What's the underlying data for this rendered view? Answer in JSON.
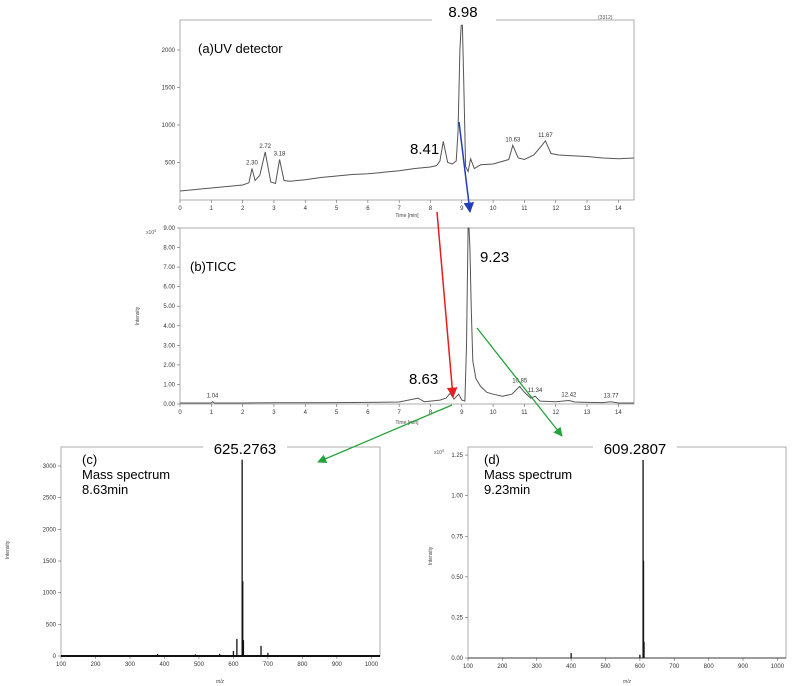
{
  "chart_data": [
    {
      "id": "uv",
      "type": "line",
      "panel_label": "(a)UV detector",
      "corner_label": "(3312)",
      "xlabel": "Time [min]",
      "ylabel": "",
      "xlim": [
        0,
        14.5
      ],
      "ylim": [
        0,
        2400
      ],
      "xticks": [
        0,
        1,
        2,
        3,
        4,
        5,
        6,
        7,
        8,
        9,
        10,
        11,
        12,
        13,
        14
      ],
      "yticks": [
        500,
        1000,
        1500,
        2000
      ],
      "series": [
        {
          "x": [
            0,
            0.5,
            1,
            1.5,
            2,
            2.2,
            2.3,
            2.4,
            2.55,
            2.72,
            2.9,
            3.05,
            3.18,
            3.32,
            3.5,
            4,
            4.5,
            5,
            5.5,
            6,
            6.5,
            7,
            7.5,
            8,
            8.2,
            8.3,
            8.41,
            8.55,
            8.7,
            8.82,
            8.88,
            8.94,
            8.98,
            9.02,
            9.06,
            9.12,
            9.2,
            9.28,
            9.4,
            9.6,
            10,
            10.5,
            10.63,
            10.8,
            11,
            11.3,
            11.5,
            11.67,
            11.85,
            12.1,
            12.5,
            13,
            13.5,
            14,
            14.5
          ],
          "y": [
            120,
            140,
            160,
            180,
            200,
            230,
            420,
            260,
            330,
            640,
            240,
            220,
            540,
            260,
            250,
            270,
            300,
            320,
            340,
            350,
            370,
            390,
            420,
            440,
            460,
            520,
            780,
            500,
            480,
            520,
            900,
            2000,
            2330,
            2330,
            1600,
            450,
            380,
            550,
            420,
            470,
            480,
            540,
            730,
            560,
            540,
            600,
            700,
            790,
            620,
            600,
            590,
            580,
            560,
            550,
            560
          ]
        }
      ],
      "annotations": [
        {
          "x": 2.3,
          "y": 420,
          "text": "2.30"
        },
        {
          "x": 2.72,
          "y": 640,
          "text": "2.72"
        },
        {
          "x": 3.18,
          "y": 540,
          "text": "3.18"
        },
        {
          "x": 10.63,
          "y": 730,
          "text": "10.63"
        },
        {
          "x": 11.67,
          "y": 790,
          "text": "11.67"
        }
      ],
      "callouts": {
        "top": "8.98",
        "left": "8.41"
      }
    },
    {
      "id": "ticc",
      "type": "line",
      "panel_label": "(b)TICC",
      "xlabel": "Time [min]",
      "ylabel": "Intensity",
      "multiplier": "x10",
      "exponent": "5",
      "xlim": [
        0,
        14.5
      ],
      "ylim": [
        0,
        9
      ],
      "xticks": [
        0,
        1,
        2,
        3,
        4,
        5,
        6,
        7,
        8,
        9,
        10,
        11,
        12,
        13,
        14
      ],
      "yticks": [
        "0.00",
        "1.00",
        "2.00",
        "3.00",
        "4.00",
        "5.00",
        "6.00",
        "7.00",
        "8.00",
        "9.00"
      ],
      "series": [
        {
          "x": [
            0,
            1,
            1.04,
            1.1,
            2,
            3,
            4,
            5,
            6,
            7,
            7.6,
            7.8,
            8,
            8.3,
            8.5,
            8.63,
            8.75,
            8.9,
            9.0,
            9.1,
            9.15,
            9.2,
            9.23,
            9.26,
            9.3,
            9.35,
            9.45,
            9.6,
            9.8,
            10,
            10.3,
            10.6,
            10.85,
            11,
            11.2,
            11.34,
            11.5,
            12,
            12.42,
            12.6,
            13,
            13.5,
            13.77,
            14,
            14.5
          ],
          "y": [
            0.05,
            0.05,
            0.12,
            0.05,
            0.05,
            0.06,
            0.06,
            0.07,
            0.08,
            0.1,
            0.3,
            0.12,
            0.15,
            0.2,
            0.3,
            0.55,
            0.25,
            0.5,
            0.2,
            0.15,
            3.0,
            9.0,
            9.0,
            8.0,
            5.0,
            2.2,
            1.3,
            0.9,
            0.6,
            0.5,
            0.4,
            0.5,
            0.9,
            0.6,
            0.3,
            0.4,
            0.15,
            0.12,
            0.18,
            0.1,
            0.08,
            0.07,
            0.12,
            0.05,
            0.05
          ]
        }
      ],
      "annotations": [
        {
          "x": 1.04,
          "y": 0.12,
          "text": "1.04"
        },
        {
          "x": 10.85,
          "y": 0.9,
          "text": "10.85"
        },
        {
          "x": 11.34,
          "y": 0.4,
          "text": "11.34"
        },
        {
          "x": 12.42,
          "y": 0.18,
          "text": "12.42"
        },
        {
          "x": 13.77,
          "y": 0.12,
          "text": "13.77"
        }
      ],
      "callouts": {
        "right": "9.23",
        "left": "8.63"
      }
    },
    {
      "id": "ms_c",
      "type": "bar",
      "panel_label_1": "(c)",
      "panel_label_2": "Mass spectrum",
      "panel_label_3": "8.63min",
      "xlabel": "m/z",
      "ylabel": "Intensity",
      "xlim": [
        100,
        1025
      ],
      "ylim": [
        0,
        3300
      ],
      "xticks": [
        100,
        200,
        300,
        400,
        500,
        600,
        700,
        800,
        900,
        1000
      ],
      "yticks": [
        0,
        500,
        1000,
        1500,
        2000,
        2500,
        3000
      ],
      "peaks": [
        {
          "x": 380,
          "y": 30
        },
        {
          "x": 490,
          "y": 25
        },
        {
          "x": 560,
          "y": 35
        },
        {
          "x": 600,
          "y": 80
        },
        {
          "x": 610,
          "y": 270
        },
        {
          "x": 625.2763,
          "y": 3100
        },
        {
          "x": 627,
          "y": 1180
        },
        {
          "x": 629,
          "y": 250
        },
        {
          "x": 680,
          "y": 160
        },
        {
          "x": 700,
          "y": 50
        }
      ],
      "callout": "625.2763"
    },
    {
      "id": "ms_d",
      "type": "bar",
      "panel_label_1": "(d)",
      "panel_label_2": "Mass spectrum",
      "panel_label_3": "9.23min",
      "xlabel": "m/z",
      "ylabel": "Intensity",
      "multiplier": "x10",
      "exponent": "5",
      "xlim": [
        100,
        1025
      ],
      "ylim": [
        0,
        1.3
      ],
      "xticks": [
        100,
        200,
        300,
        400,
        500,
        600,
        700,
        800,
        900,
        1000
      ],
      "yticks": [
        "0.00",
        "0.25",
        "0.50",
        "0.75",
        "1.00",
        "1.25"
      ],
      "peaks": [
        {
          "x": 400,
          "y": 0.03
        },
        {
          "x": 600,
          "y": 0.02
        },
        {
          "x": 609.2807,
          "y": 1.22
        },
        {
          "x": 610.5,
          "y": 0.6
        },
        {
          "x": 612,
          "y": 0.1
        }
      ],
      "callout": "609.2807"
    }
  ],
  "arrow_colors": {
    "red": "#e81d1d",
    "blue": "#1f3fb8",
    "green": "#26a33a"
  }
}
